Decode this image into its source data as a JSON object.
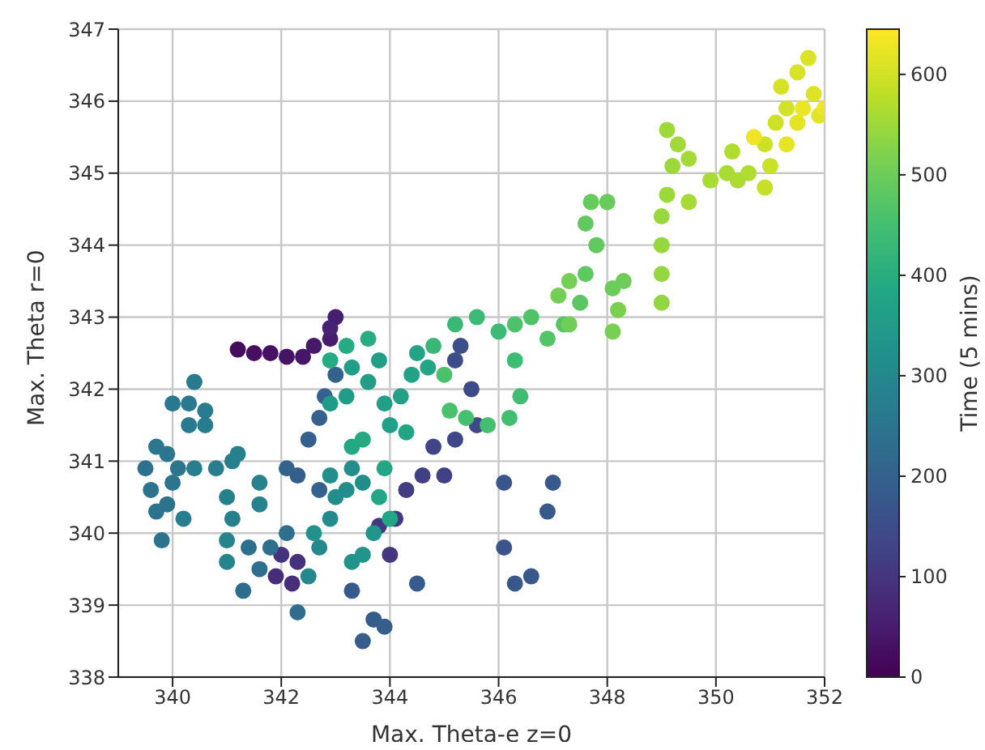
{
  "chart_data": {
    "type": "scatter",
    "xlabel": "Max. Theta-e z=0",
    "ylabel": "Max. Theta r=0",
    "clabel": "Time (5 mins)",
    "xlim": [
      339,
      352
    ],
    "xticks": [
      340,
      342,
      344,
      346,
      348,
      350,
      352
    ],
    "ylim": [
      338,
      347
    ],
    "yticks": [
      338,
      339,
      340,
      341,
      342,
      343,
      344,
      345,
      346,
      347
    ],
    "clim": [
      0,
      645
    ],
    "cticks": [
      0,
      100,
      200,
      300,
      400,
      500,
      600
    ],
    "grid": true,
    "marker": "circle",
    "x": [
      341.2,
      341.5,
      341.8,
      342.1,
      342.4,
      342.6,
      342.9,
      343,
      342.9,
      341.9,
      342.2,
      342.3,
      342.0,
      344.1,
      344.3,
      344.6,
      345,
      344.8,
      345.2,
      345.6,
      345.5,
      345.2,
      345.3,
      343.8,
      344,
      346.1,
      346.1,
      346.3,
      346.6,
      347,
      346.9,
      343.3,
      344.5,
      343.7,
      343.5,
      343.9,
      342.3,
      342.5,
      342.7,
      342.8,
      343,
      342.7,
      342.1,
      339.5,
      339.6,
      339.7,
      339.8,
      339.9,
      340,
      340.1,
      339.9,
      339.7,
      340.0,
      340.3,
      340.4,
      340.3,
      340.6,
      340.6,
      340.2,
      340.4,
      340.8,
      341.1,
      341.2,
      341,
      341.1,
      341.6,
      341.6,
      341,
      341.0,
      341.3,
      341.6,
      341.8,
      342.1,
      341.4,
      342.3,
      342.5,
      342.7,
      342.9,
      343.0,
      343.2,
      343.5,
      343.3,
      342.9,
      342.6,
      343.3,
      343.5,
      343.7,
      342.9,
      343.2,
      343.3,
      343.6,
      343.8,
      343.9,
      344,
      344.2,
      344.4,
      344.5,
      344.7,
      344.3,
      343.9,
      343.8,
      344,
      343.3,
      343.5,
      342.9,
      343.2,
      343.6,
      344.8,
      345.2,
      345.6,
      346.0,
      346.3,
      346.4,
      346.2,
      345.8,
      345.4,
      345.1,
      345.0,
      346.3,
      346.6,
      346.9,
      347.2,
      347.5,
      347.6,
      347.8,
      347.6,
      347.7,
      348,
      348.1,
      348.3,
      347.3,
      347.1,
      347.3,
      348.1,
      348.2,
      349,
      349,
      349,
      349,
      349.1,
      349.2,
      349.1,
      349.3,
      349.5,
      349.5,
      349.9,
      350.2,
      350.4,
      350.6,
      350.3,
      350.9,
      351.0,
      350.9,
      351.1,
      351.3,
      351.2,
      351.5,
      351.7,
      351.8,
      351.9,
      351.5,
      351.3,
      351.6,
      352,
      350.7
    ],
    "values": [
      342.55,
      342.5,
      342.5,
      342.45,
      342.45,
      342.6,
      342.7,
      343,
      342.85,
      339.4,
      339.3,
      339.6,
      339.7,
      340.2,
      340.6,
      340.8,
      340.8,
      341.2,
      341.3,
      341.5,
      342,
      342.4,
      342.6,
      340.1,
      339.7,
      340.7,
      339.8,
      339.3,
      339.4,
      340.7,
      340.3,
      339.2,
      339.3,
      338.8,
      338.5,
      338.7,
      340.8,
      341.3,
      341.6,
      341.9,
      342.2,
      340.6,
      340.9,
      340.9,
      340.6,
      340.3,
      339.9,
      340.4,
      340.7,
      340.9,
      341.1,
      341.2,
      341.8,
      341.8,
      342.1,
      341.5,
      341.7,
      341.5,
      340.2,
      340.9,
      340.9,
      341,
      341.1,
      340.5,
      340.2,
      340.4,
      340.7,
      339.9,
      339.6,
      339.2,
      339.5,
      339.8,
      340.0,
      339.8,
      338.9,
      339.4,
      339.8,
      340.2,
      340.5,
      340.6,
      340.7,
      340.9,
      340.8,
      340.0,
      339.6,
      339.7,
      340.0,
      341.8,
      341.9,
      342.3,
      342.1,
      342.4,
      341.8,
      341.5,
      341.9,
      342.2,
      342.5,
      342.3,
      341.4,
      340.9,
      340.5,
      340.2,
      341.2,
      341.3,
      342.4,
      342.6,
      342.7,
      342.6,
      342.9,
      343.0,
      342.8,
      342.4,
      341.9,
      341.6,
      341.5,
      341.6,
      341.7,
      342.2,
      342.9,
      343.0,
      342.7,
      342.9,
      343.2,
      343.6,
      344.0,
      344.3,
      344.6,
      344.6,
      343.4,
      343.5,
      342.9,
      343.3,
      343.5,
      342.8,
      343.1,
      343.2,
      343.6,
      344,
      344.4,
      344.7,
      345.1,
      345.6,
      345.4,
      345.2,
      344.6,
      344.9,
      345.0,
      344.9,
      345,
      345.3,
      344.8,
      345.1,
      345.4,
      345.7,
      345.9,
      346.2,
      346.4,
      346.6,
      346.1,
      345.8,
      345.7,
      345.4,
      345.9,
      345.9,
      345.5
    ],
    "cvalues": [
      20,
      25,
      30,
      35,
      40,
      45,
      50,
      55,
      60,
      80,
      85,
      90,
      95,
      110,
      115,
      120,
      125,
      130,
      135,
      140,
      145,
      150,
      155,
      105,
      100,
      170,
      172,
      174,
      176,
      178,
      180,
      182,
      184,
      186,
      188,
      190,
      192,
      194,
      196,
      198,
      200,
      202,
      204,
      240,
      242,
      244,
      246,
      248,
      250,
      252,
      254,
      256,
      258,
      260,
      262,
      264,
      266,
      268,
      270,
      272,
      274,
      276,
      278,
      280,
      282,
      284,
      286,
      288,
      290,
      230,
      232,
      234,
      236,
      238,
      228,
      300,
      303,
      306,
      309,
      312,
      315,
      318,
      321,
      324,
      327,
      330,
      333,
      350,
      352,
      355,
      358,
      360,
      362,
      365,
      368,
      370,
      372,
      375,
      378,
      380,
      382,
      385,
      388,
      390,
      392,
      395,
      398,
      430,
      433,
      436,
      439,
      442,
      445,
      448,
      451,
      454,
      457,
      460,
      463,
      466,
      469,
      472,
      480,
      483,
      486,
      489,
      492,
      495,
      498,
      501,
      504,
      507,
      510,
      513,
      516,
      540,
      542,
      544,
      546,
      548,
      550,
      552,
      554,
      556,
      558,
      560,
      562,
      564,
      566,
      568,
      590,
      593,
      596,
      599,
      602,
      605,
      608,
      611,
      614,
      617,
      620,
      623,
      626,
      629,
      632
    ]
  }
}
